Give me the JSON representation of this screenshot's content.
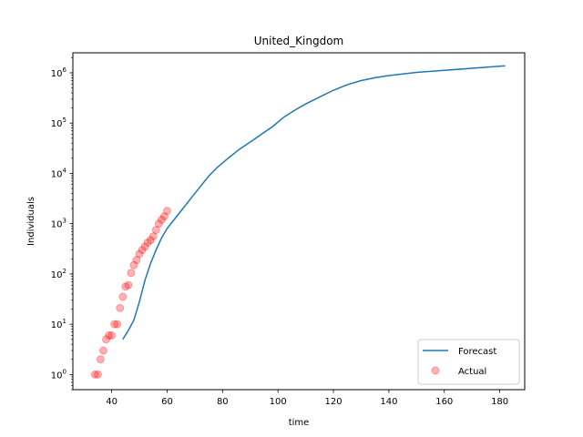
{
  "chart_data": {
    "type": "line",
    "title": "United_Kingdom",
    "xlabel": "time",
    "ylabel": "Individuals",
    "xlim": [
      26,
      189
    ],
    "ylim": [
      0.5,
      2500000
    ],
    "yscale": "log",
    "grid": false,
    "legend_position": "bottom-right",
    "x_ticks": [
      40,
      60,
      80,
      100,
      120,
      140,
      160,
      180
    ],
    "y_ticks": [
      1,
      10,
      100,
      1000,
      10000,
      100000,
      1000000
    ],
    "y_tick_labels": [
      {
        "base": "10",
        "exp": "0"
      },
      {
        "base": "10",
        "exp": "1"
      },
      {
        "base": "10",
        "exp": "2"
      },
      {
        "base": "10",
        "exp": "3"
      },
      {
        "base": "10",
        "exp": "4"
      },
      {
        "base": "10",
        "exp": "5"
      },
      {
        "base": "10",
        "exp": "6"
      }
    ],
    "series": [
      {
        "name": "Forecast",
        "style": "line",
        "color": "#1f77b4",
        "points": [
          [
            44,
            5
          ],
          [
            46,
            7.5
          ],
          [
            48,
            12
          ],
          [
            50,
            28
          ],
          [
            52,
            75
          ],
          [
            54,
            160
          ],
          [
            56,
            300
          ],
          [
            58,
            520
          ],
          [
            60,
            800
          ],
          [
            63,
            1300
          ],
          [
            66,
            2100
          ],
          [
            69,
            3400
          ],
          [
            72,
            5500
          ],
          [
            75,
            8800
          ],
          [
            78,
            13000
          ],
          [
            82,
            20000
          ],
          [
            86,
            30000
          ],
          [
            90,
            42000
          ],
          [
            94,
            60000
          ],
          [
            98,
            85000
          ],
          [
            102,
            130000
          ],
          [
            106,
            180000
          ],
          [
            110,
            240000
          ],
          [
            115,
            330000
          ],
          [
            120,
            450000
          ],
          [
            125,
            580000
          ],
          [
            130,
            700000
          ],
          [
            135,
            800000
          ],
          [
            140,
            880000
          ],
          [
            145,
            950000
          ],
          [
            150,
            1020000
          ],
          [
            160,
            1120000
          ],
          [
            170,
            1230000
          ],
          [
            182,
            1380000
          ]
        ]
      },
      {
        "name": "Actual",
        "style": "scatter",
        "color": "#ff0000",
        "points": [
          [
            34,
            1
          ],
          [
            35,
            1
          ],
          [
            36,
            2
          ],
          [
            37,
            3
          ],
          [
            38,
            5
          ],
          [
            39,
            6
          ],
          [
            40,
            6
          ],
          [
            41,
            10
          ],
          [
            42,
            10
          ],
          [
            43,
            21
          ],
          [
            44,
            35
          ],
          [
            45,
            56
          ],
          [
            46,
            60
          ],
          [
            47,
            105
          ],
          [
            48,
            150
          ],
          [
            49,
            190
          ],
          [
            50,
            250
          ],
          [
            51,
            300
          ],
          [
            52,
            350
          ],
          [
            53,
            420
          ],
          [
            54,
            470
          ],
          [
            55,
            560
          ],
          [
            56,
            750
          ],
          [
            57,
            1000
          ],
          [
            58,
            1200
          ],
          [
            59,
            1400
          ],
          [
            60,
            1800
          ]
        ]
      }
    ]
  }
}
